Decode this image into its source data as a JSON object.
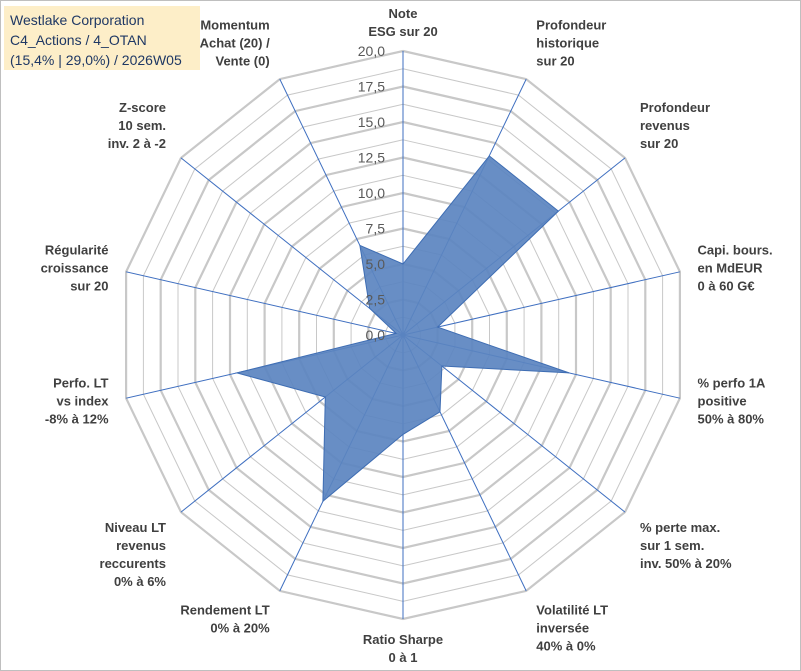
{
  "title": {
    "line1": "Westlake Corporation",
    "line2": "C4_Actions / 4_OTAN",
    "line3": "(15,4% | 29,0%) / 2026W05"
  },
  "colors": {
    "fill": "#5b84c0",
    "stroke": "#3e6db3",
    "grid": "#c8c8c8",
    "spoke": "#3f6fc0",
    "title_bg": "#fdeec8",
    "title_text": "#1f3864"
  },
  "chart_data": {
    "type": "radar",
    "range": [
      0,
      20
    ],
    "ticks": [
      "0,0",
      "2,5",
      "5,0",
      "7,5",
      "10,0",
      "12,5",
      "15,0",
      "17,5",
      "20,0"
    ],
    "grid_rings": 16,
    "axes": [
      {
        "label": [
          "Note",
          "ESG sur 20"
        ],
        "value": 5
      },
      {
        "label": [
          "Profondeur",
          "historique",
          "sur 20"
        ],
        "value": 14
      },
      {
        "label": [
          "Profondeur",
          "revenus",
          "sur 20"
        ],
        "value": 14
      },
      {
        "label": [
          "Capi. bours.",
          "en MdEUR",
          "0 à 60 G€"
        ],
        "value": 2.5
      },
      {
        "label": [
          "% perfo 1A",
          "positive",
          "50% à 80%"
        ],
        "value": 12
      },
      {
        "label": [
          "% perte max.",
          "sur 1 sem.",
          "inv. 50% à 20%"
        ],
        "value": 3.5
      },
      {
        "label": [
          "Volatilité LT",
          "inversée",
          "40% à 0%"
        ],
        "value": 6
      },
      {
        "label": [
          "Ratio Sharpe",
          "0 à 1"
        ],
        "value": 7
      },
      {
        "label": [
          "Rendement LT",
          "0% à 20%"
        ],
        "value": 13
      },
      {
        "label": [
          "Niveau LT",
          "revenus",
          "reccurents",
          "0% à 6%"
        ],
        "value": 7
      },
      {
        "label": [
          "Perfo. LT",
          "vs index",
          "-8% à 12%"
        ],
        "value": 12
      },
      {
        "label": [
          "Régularité",
          "croissance",
          "sur 20"
        ],
        "value": 0.5
      },
      {
        "label": [
          "Z-score",
          "10 sem.",
          "inv. 2 à -2"
        ],
        "value": 3
      },
      {
        "label": [
          "Momentum",
          "Achat (20) /",
          "Vente (0)"
        ],
        "value": 7
      }
    ]
  }
}
